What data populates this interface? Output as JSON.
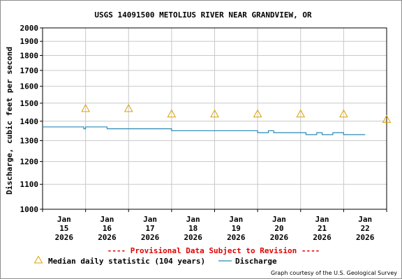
{
  "chart_data": {
    "type": "line",
    "title": "USGS 14091500 METOLIUS RIVER NEAR GRANDVIEW, OR",
    "ylabel": "Discharge, cubic feet per second",
    "xlabel": "",
    "y_scale": "log",
    "ylim": [
      1000,
      2000
    ],
    "y_ticks": [
      1000,
      1100,
      1200,
      1300,
      1400,
      1500,
      1600,
      1700,
      1800,
      1900,
      2000
    ],
    "x_range": [
      "2026-01-14 12:00",
      "2026-01-22 12:00"
    ],
    "x_ticks": [
      {
        "month": "Jan",
        "day": "15",
        "year": "2026"
      },
      {
        "month": "Jan",
        "day": "16",
        "year": "2026"
      },
      {
        "month": "Jan",
        "day": "17",
        "year": "2026"
      },
      {
        "month": "Jan",
        "day": "18",
        "year": "2026"
      },
      {
        "month": "Jan",
        "day": "19",
        "year": "2026"
      },
      {
        "month": "Jan",
        "day": "20",
        "year": "2026"
      },
      {
        "month": "Jan",
        "day": "21",
        "year": "2026"
      },
      {
        "month": "Jan",
        "day": "22",
        "year": "2026"
      }
    ],
    "grid": true,
    "series": [
      {
        "name": "Median daily statistic (104 years)",
        "type": "scatter",
        "marker": "triangle",
        "color": "#dda000",
        "x": [
          "2026-01-15 12:00",
          "2026-01-16 12:00",
          "2026-01-17 12:00",
          "2026-01-18 12:00",
          "2026-01-19 12:00",
          "2026-01-20 12:00",
          "2026-01-21 12:00",
          "2026-01-22 12:00"
        ],
        "y": [
          1470,
          1470,
          1440,
          1440,
          1440,
          1440,
          1440,
          1410
        ]
      },
      {
        "name": "Discharge",
        "type": "line",
        "color": "#2a89b5",
        "x": [
          "2026-01-14 12:00",
          "2026-01-15 09:00",
          "2026-01-15 11:00",
          "2026-01-15 12:00",
          "2026-01-15 20:00",
          "2026-01-16 00:00",
          "2026-01-17 06:00",
          "2026-01-17 12:00",
          "2026-01-19 06:00",
          "2026-01-19 12:00",
          "2026-01-19 15:00",
          "2026-01-19 18:00",
          "2026-01-19 21:00",
          "2026-01-20 06:00",
          "2026-01-20 12:00",
          "2026-01-20 15:00",
          "2026-01-20 18:00",
          "2026-01-20 21:00",
          "2026-01-21 00:00",
          "2026-01-21 06:00",
          "2026-01-21 12:00",
          "2026-01-21 18:00",
          "2026-01-22 00:00"
        ],
        "y": [
          1370,
          1370,
          1360,
          1370,
          1370,
          1360,
          1360,
          1350,
          1350,
          1340,
          1340,
          1350,
          1340,
          1340,
          1340,
          1330,
          1330,
          1340,
          1330,
          1340,
          1330,
          1330,
          1330
        ]
      }
    ],
    "annotation": "---- Provisional Data Subject to Revision ----",
    "annotation_color": "#e00000",
    "legend_placement": "bottom"
  },
  "credit": "Graph courtesy of the U.S. Geological Survey"
}
